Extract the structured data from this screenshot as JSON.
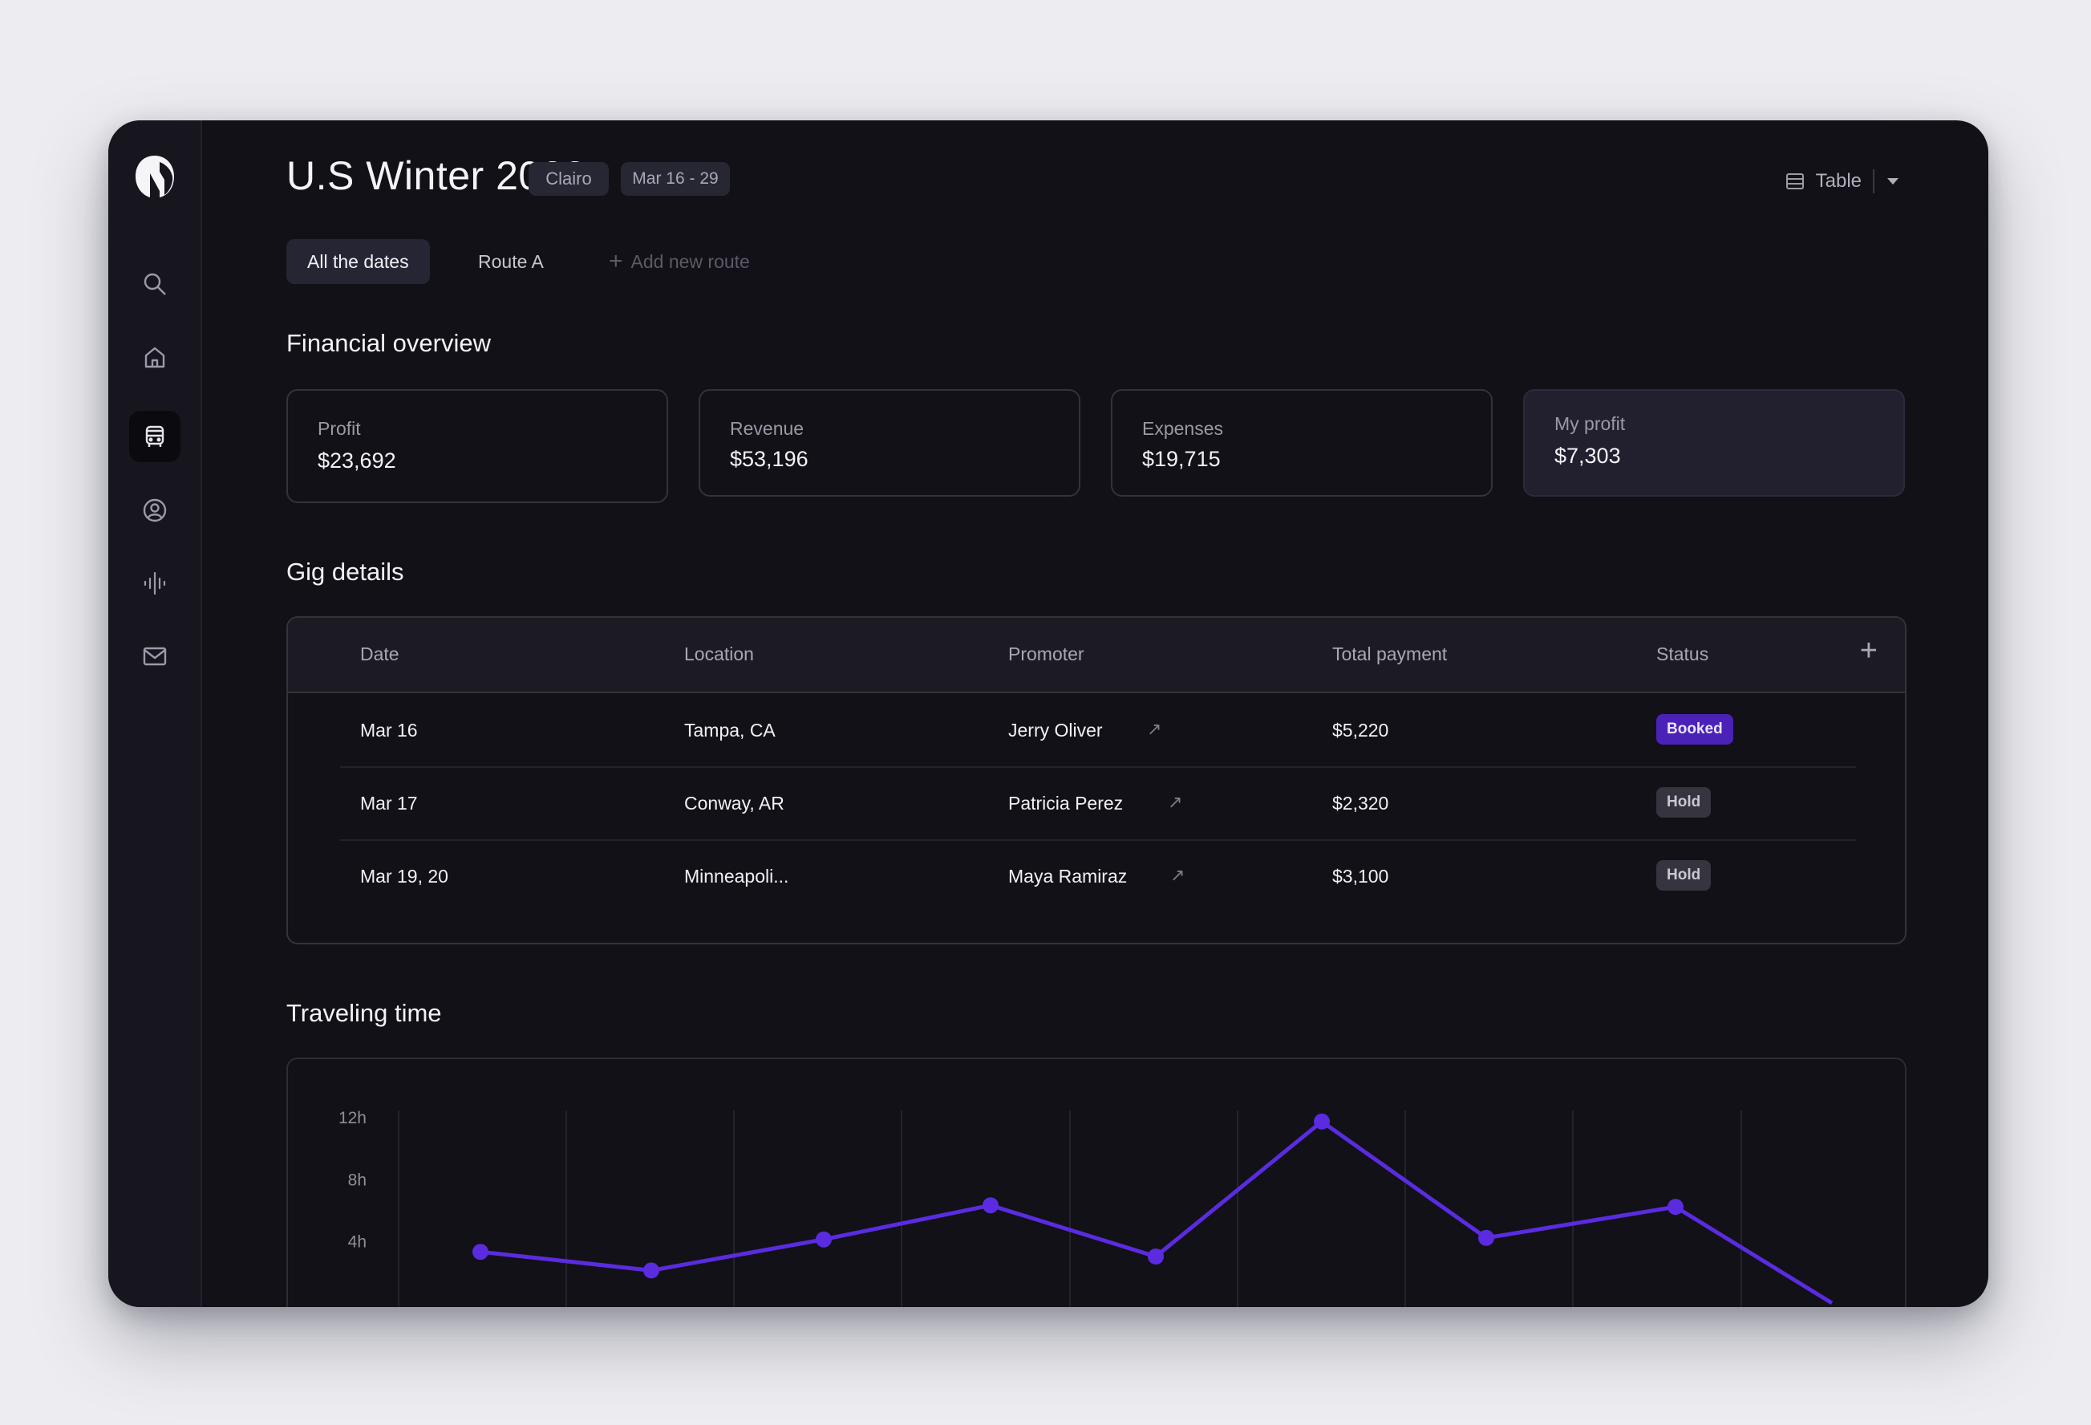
{
  "header": {
    "title": "U.S Winter 2023",
    "artist_tag": "Clairo",
    "date_range_tag": "Mar 16 - 29",
    "view_label": "Table"
  },
  "tabs": {
    "all_dates": "All the dates",
    "route_a": "Route A",
    "add_route": "Add new route"
  },
  "financial": {
    "title": "Financial overview",
    "cards": [
      {
        "label": "Profit",
        "value": "$23,692"
      },
      {
        "label": "Revenue",
        "value": "$53,196"
      },
      {
        "label": "Expenses",
        "value": "$19,715"
      },
      {
        "label": "My profit",
        "value": "$7,303"
      }
    ]
  },
  "gigs": {
    "title": "Gig details",
    "columns": [
      "Date",
      "Location",
      "Promoter",
      "Total payment",
      "Status"
    ],
    "rows": [
      {
        "date": "Mar 16",
        "location": "Tampa, CA",
        "promoter": "Jerry Oliver",
        "payment": "$5,220",
        "status": "Booked"
      },
      {
        "date": "Mar 17",
        "location": "Conway, AR",
        "promoter": "Patricia Perez",
        "payment": "$2,320",
        "status": "Hold"
      },
      {
        "date": "Mar 19, 20",
        "location": "Minneapoli...",
        "promoter": "Maya Ramiraz",
        "payment": "$3,100",
        "status": "Hold"
      }
    ]
  },
  "traveling": {
    "title": "Traveling time"
  },
  "colors": {
    "accent": "#5b2be0",
    "booked": "#4b22b8",
    "hold": "#35343f"
  },
  "icons": [
    "logo-icon",
    "search-icon",
    "home-icon",
    "bus-icon",
    "user-circle-icon",
    "audio-wave-icon",
    "mail-icon",
    "table-icon",
    "caret-down-icon",
    "plus-icon",
    "arrow-up-right-icon"
  ],
  "chart_data": {
    "type": "line",
    "title": "",
    "xlabel": "",
    "ylabel": "",
    "ytick_labels": [
      "12h",
      "8h",
      "4h"
    ],
    "ylim": [
      0,
      12
    ],
    "grid": true,
    "x": [
      1,
      2,
      3,
      4,
      5,
      6,
      7,
      8,
      9
    ],
    "series": [
      {
        "values": [
          3.3,
          2.1,
          4.1,
          6.3,
          3.0,
          11.7,
          4.2,
          6.2,
          0
        ]
      }
    ]
  }
}
